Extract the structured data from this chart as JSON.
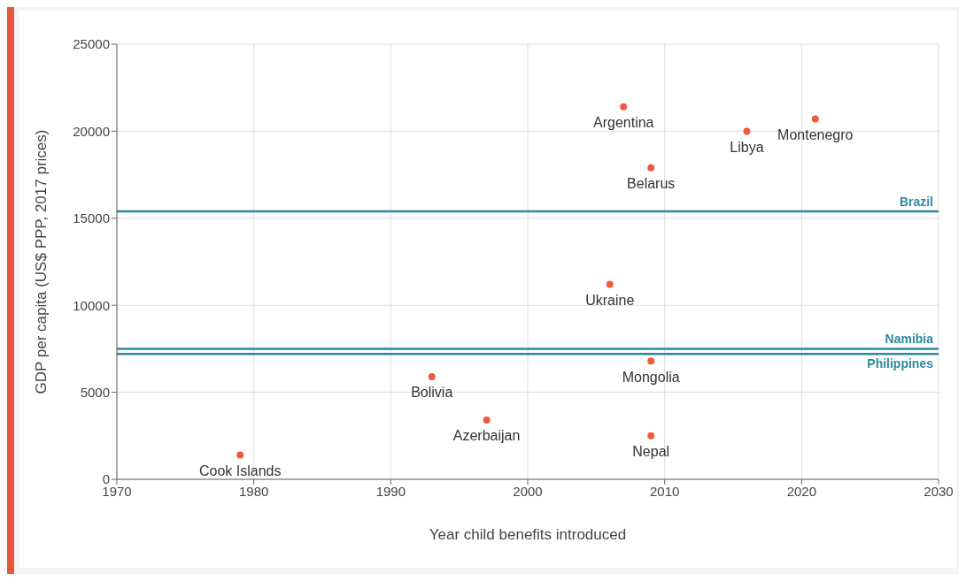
{
  "chart_data": {
    "type": "scatter",
    "xlabel": "Year child benefits introduced",
    "ylabel": "GDP per capita (US$ PPP, 2017 prices)",
    "x": [
      1979,
      1993,
      1997,
      2006,
      2007,
      2009,
      2009,
      2009,
      2016,
      2021
    ],
    "series": [
      {
        "color": "#f05a3c",
        "values": [
          1400,
          5900,
          3400,
          11200,
          21400,
          17900,
          6800,
          2500,
          20000,
          20700
        ]
      }
    ],
    "xlim": [
      1970,
      2030
    ],
    "xticks": [
      1970,
      1980,
      1990,
      2000,
      2010,
      2020,
      2030
    ],
    "ylim": [
      0,
      25000
    ],
    "yticks": [
      0,
      5000,
      10000,
      15000,
      20000,
      25000
    ],
    "grid": true,
    "marker": "circle",
    "ref_lines": [
      {
        "axis": "y",
        "value": 15400,
        "label": "Brazil",
        "color": "#2a8a9e"
      },
      {
        "axis": "y",
        "value": 7500,
        "label": "Namibia",
        "color": "#2a8a9e"
      },
      {
        "axis": "y",
        "value": 7200,
        "label": "Philippines",
        "color": "#2a8a9e"
      }
    ],
    "annotations": [
      {
        "text": "Cook Islands",
        "x": 1979,
        "y": 1400
      },
      {
        "text": "Bolivia",
        "x": 1993,
        "y": 5900
      },
      {
        "text": "Azerbaijan",
        "x": 1997,
        "y": 3400
      },
      {
        "text": "Ukraine",
        "x": 2006,
        "y": 11200
      },
      {
        "text": "Argentina",
        "x": 2007,
        "y": 21400
      },
      {
        "text": "Belarus",
        "x": 2009,
        "y": 17900
      },
      {
        "text": "Mongolia",
        "x": 2009,
        "y": 6800
      },
      {
        "text": "Nepal",
        "x": 2009,
        "y": 2500
      },
      {
        "text": "Libya",
        "x": 2016,
        "y": 20000
      },
      {
        "text": "Montenegro",
        "x": 2021,
        "y": 20700
      }
    ]
  }
}
